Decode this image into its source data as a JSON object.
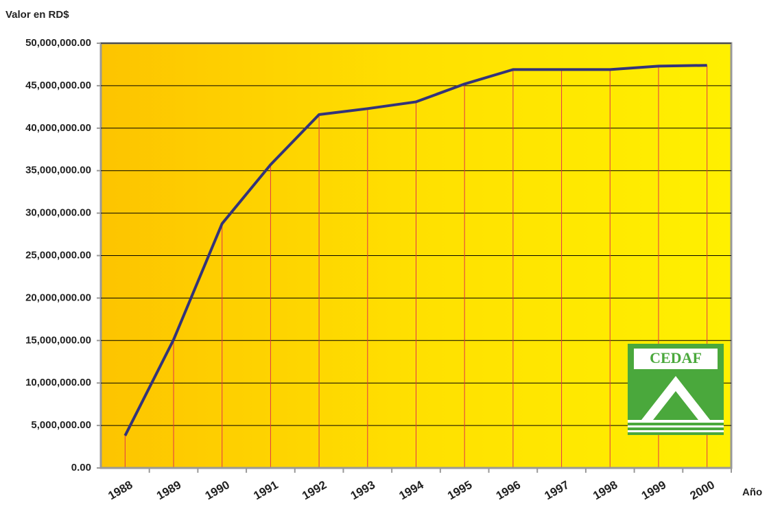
{
  "chart_data": {
    "type": "line",
    "y_axis_title": "Valor en RD$",
    "x_axis_title": "Año",
    "logo": "CEDAF",
    "categories": [
      "1988",
      "1989",
      "1990",
      "1991",
      "1992",
      "1993",
      "1994",
      "1995",
      "1996",
      "1997",
      "1998",
      "1999",
      "2000"
    ],
    "series": [
      {
        "color": "#33337a",
        "values": [
          3800000,
          15100000,
          28760000,
          35700000,
          41600000,
          42300000,
          43100000,
          45200000,
          46900000,
          46900000,
          46900000,
          47300000,
          47400000
        ]
      }
    ],
    "ylim": [
      0,
      50000000
    ],
    "yticks": [
      {
        "value": 0,
        "label": "0.00"
      },
      {
        "value": 5000000,
        "label": "5,000,000.00"
      },
      {
        "value": 10000000,
        "label": "10,000,000.00"
      },
      {
        "value": 15000000,
        "label": "15,000,000.00"
      },
      {
        "value": 20000000,
        "label": "20,000,000.00"
      },
      {
        "value": 25000000,
        "label": "25,000,000.00"
      },
      {
        "value": 30000000,
        "label": "30,000,000.00"
      },
      {
        "value": 35000000,
        "label": "35,000,000.00"
      },
      {
        "value": 40000000,
        "label": "40,000,000.00"
      },
      {
        "value": 45000000,
        "label": "45,000,000.00"
      },
      {
        "value": 50000000,
        "label": "50,000,000.00"
      }
    ],
    "grid": true
  }
}
